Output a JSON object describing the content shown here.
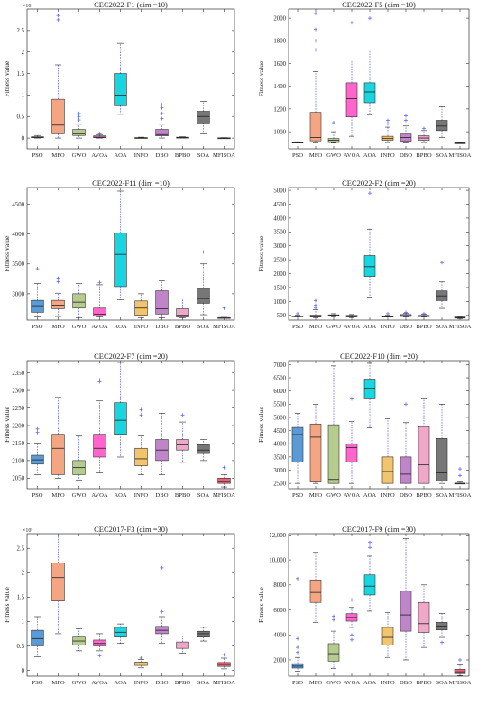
{
  "figure": {
    "categories": [
      "PSO",
      "MFO",
      "GWO",
      "AVOA",
      "AOA",
      "INFO",
      "DBO",
      "BPBO",
      "SOA",
      "MFISOA"
    ],
    "colors": [
      "#5b9bd5",
      "#f4a582",
      "#b5cc8e",
      "#ff66cc",
      "#19d5e0",
      "#f2c46e",
      "#c084c8",
      "#f0a8c8",
      "#777777",
      "#f06074"
    ]
  },
  "chart_data": [
    {
      "type": "box",
      "title": "CEC2022-F1 (dim =10)",
      "ylabel": "Fitness value",
      "exponent": "×10⁴",
      "ylim": [
        -0.25,
        3.0
      ],
      "yticks": [
        0,
        0.5,
        1,
        1.5,
        2,
        2.5
      ],
      "yticklabels": [
        "0",
        "0.5",
        "1",
        "1.5",
        "2",
        "2.5"
      ],
      "boxes": [
        {
          "q1": 0.01,
          "median": 0.02,
          "q3": 0.03,
          "wlow": 0.0,
          "whigh": 0.06,
          "outliers": []
        },
        {
          "q1": 0.1,
          "median": 0.3,
          "q3": 0.9,
          "wlow": 0.0,
          "whigh": 1.7,
          "outliers": [
            2.75,
            2.85
          ]
        },
        {
          "q1": 0.06,
          "median": 0.1,
          "q3": 0.2,
          "wlow": 0.0,
          "whigh": 0.32,
          "outliers": [
            0.42,
            0.5,
            0.57
          ]
        },
        {
          "q1": 0.01,
          "median": 0.02,
          "q3": 0.05,
          "wlow": 0.0,
          "whigh": 0.08,
          "outliers": [
            0.1
          ]
        },
        {
          "q1": 0.75,
          "median": 1.0,
          "q3": 1.5,
          "wlow": 0.55,
          "whigh": 2.2,
          "outliers": []
        },
        {
          "q1": 0.0,
          "median": 0.005,
          "q3": 0.01,
          "wlow": 0.0,
          "whigh": 0.02,
          "outliers": []
        },
        {
          "q1": 0.05,
          "median": 0.08,
          "q3": 0.2,
          "wlow": 0.0,
          "whigh": 0.32,
          "outliers": [
            0.45,
            0.57,
            0.7,
            0.77
          ]
        },
        {
          "q1": 0.0,
          "median": 0.01,
          "q3": 0.02,
          "wlow": 0.0,
          "whigh": 0.03,
          "outliers": []
        },
        {
          "q1": 0.35,
          "median": 0.5,
          "q3": 0.62,
          "wlow": 0.1,
          "whigh": 0.85,
          "outliers": []
        },
        {
          "q1": 0.0,
          "median": 0.0,
          "q3": 0.005,
          "wlow": 0.0,
          "whigh": 0.01,
          "outliers": []
        }
      ]
    },
    {
      "type": "box",
      "title": "CEC2022-F5 (dim =10)",
      "ylabel": "Fitness value",
      "ylim": [
        850,
        2080
      ],
      "yticks": [
        1000,
        1200,
        1400,
        1600,
        1800,
        2000
      ],
      "yticklabels": [
        "1000",
        "1200",
        "1400",
        "1600",
        "1800",
        "2000"
      ],
      "boxes": [
        {
          "q1": 900,
          "median": 903,
          "q3": 908,
          "wlow": 900,
          "whigh": 912,
          "outliers": []
        },
        {
          "q1": 920,
          "median": 950,
          "q3": 1170,
          "wlow": 900,
          "whigh": 1530,
          "outliers": [
            1720,
            1800,
            1900,
            2040
          ]
        },
        {
          "q1": 905,
          "median": 925,
          "q3": 940,
          "wlow": 900,
          "whigh": 1000,
          "outliers": [
            1080
          ]
        },
        {
          "q1": 1130,
          "median": 1290,
          "q3": 1430,
          "wlow": 960,
          "whigh": 1630,
          "outliers": [
            1960
          ]
        },
        {
          "q1": 1255,
          "median": 1350,
          "q3": 1430,
          "wlow": 1150,
          "whigh": 1720,
          "outliers": [
            2000
          ]
        },
        {
          "q1": 925,
          "median": 940,
          "q3": 960,
          "wlow": 905,
          "whigh": 1040,
          "outliers": [
            1070,
            1100
          ]
        },
        {
          "q1": 915,
          "median": 950,
          "q3": 980,
          "wlow": 900,
          "whigh": 1050,
          "outliers": [
            1100,
            1140
          ]
        },
        {
          "q1": 925,
          "median": 945,
          "q3": 965,
          "wlow": 905,
          "whigh": 1010,
          "outliers": [
            1030
          ]
        },
        {
          "q1": 1010,
          "median": 1050,
          "q3": 1100,
          "wlow": 950,
          "whigh": 1220,
          "outliers": []
        },
        {
          "q1": 900,
          "median": 900,
          "q3": 902,
          "wlow": 900,
          "whigh": 905,
          "outliers": []
        }
      ]
    },
    {
      "type": "box",
      "title": "CEC2022-F11 (dim =10)",
      "ylabel": "Fitness value",
      "ylim": [
        2560,
        4780
      ],
      "yticks": [
        3000,
        3500,
        4000,
        4500
      ],
      "yticklabels": [
        "3000",
        "3500",
        "4000",
        "4500"
      ],
      "boxes": [
        {
          "q1": 2690,
          "median": 2800,
          "q3": 2890,
          "wlow": 2610,
          "whigh": 3170,
          "outliers": [
            3420
          ]
        },
        {
          "q1": 2750,
          "median": 2810,
          "q3": 2890,
          "wlow": 2620,
          "whigh": 3010,
          "outliers": [
            3200,
            3260
          ]
        },
        {
          "q1": 2760,
          "median": 2860,
          "q3": 3000,
          "wlow": 2600,
          "whigh": 3170,
          "outliers": []
        },
        {
          "q1": 2630,
          "median": 2660,
          "q3": 2760,
          "wlow": 2610,
          "whigh": 3150,
          "outliers": [
            3190
          ]
        },
        {
          "q1": 3120,
          "median": 3660,
          "q3": 4020,
          "wlow": 2900,
          "whigh": 4720,
          "outliers": []
        },
        {
          "q1": 2640,
          "median": 2760,
          "q3": 2880,
          "wlow": 2600,
          "whigh": 3000,
          "outliers": []
        },
        {
          "q1": 2660,
          "median": 2750,
          "q3": 3050,
          "wlow": 2600,
          "whigh": 3220,
          "outliers": []
        },
        {
          "q1": 2610,
          "median": 2640,
          "q3": 2750,
          "wlow": 2600,
          "whigh": 2930,
          "outliers": []
        },
        {
          "q1": 2840,
          "median": 2920,
          "q3": 3090,
          "wlow": 2650,
          "whigh": 3500,
          "outliers": [
            3700
          ]
        },
        {
          "q1": 2600,
          "median": 2600,
          "q3": 2602,
          "wlow": 2600,
          "whigh": 2605,
          "outliers": [
            2760
          ]
        }
      ]
    },
    {
      "type": "box",
      "title": "CEC2022-F2 (dim =20)",
      "ylabel": "Fitness value",
      "ylim": [
        330,
        5100
      ],
      "yticks": [
        500,
        1000,
        1500,
        2000,
        2500,
        3000,
        3500,
        4000,
        4500,
        5000
      ],
      "yticklabels": [
        "500",
        "1000",
        "1500",
        "2000",
        "2500",
        "3000",
        "3500",
        "4000",
        "4500",
        "5000"
      ],
      "boxes": [
        {
          "q1": 449,
          "median": 460,
          "q3": 480,
          "wlow": 445,
          "whigh": 510,
          "outliers": [
            560
          ]
        },
        {
          "q1": 440,
          "median": 460,
          "q3": 510,
          "wlow": 420,
          "whigh": 700,
          "outliers": [
            760,
            860,
            1030
          ]
        },
        {
          "q1": 470,
          "median": 500,
          "q3": 520,
          "wlow": 445,
          "whigh": 560,
          "outliers": []
        },
        {
          "q1": 440,
          "median": 460,
          "q3": 500,
          "wlow": 420,
          "whigh": 530,
          "outliers": []
        },
        {
          "q1": 1900,
          "median": 2250,
          "q3": 2650,
          "wlow": 1150,
          "whigh": 3600,
          "outliers": [
            4900
          ]
        },
        {
          "q1": 449,
          "median": 455,
          "q3": 470,
          "wlow": 440,
          "whigh": 500,
          "outliers": [
            560
          ]
        },
        {
          "q1": 460,
          "median": 490,
          "q3": 530,
          "wlow": 440,
          "whigh": 580,
          "outliers": [
            610
          ]
        },
        {
          "q1": 455,
          "median": 475,
          "q3": 500,
          "wlow": 440,
          "whigh": 540,
          "outliers": [
            560
          ]
        },
        {
          "q1": 1030,
          "median": 1200,
          "q3": 1380,
          "wlow": 750,
          "whigh": 1700,
          "outliers": [
            2400
          ]
        },
        {
          "q1": 400,
          "median": 420,
          "q3": 440,
          "wlow": 380,
          "whigh": 460,
          "outliers": []
        }
      ]
    },
    {
      "type": "box",
      "title": "CEC2022-F7 (dim =20)",
      "ylabel": "Fitness value",
      "ylim": [
        2020,
        2385
      ],
      "yticks": [
        2050,
        2100,
        2150,
        2200,
        2250,
        2300,
        2350
      ],
      "yticklabels": [
        "2050",
        "2100",
        "2150",
        "2200",
        "2250",
        "2300",
        "2350"
      ],
      "boxes": [
        {
          "q1": 2090,
          "median": 2102,
          "q3": 2115,
          "wlow": 2060,
          "whigh": 2150,
          "outliers": [
            2180,
            2190
          ]
        },
        {
          "q1": 2060,
          "median": 2135,
          "q3": 2175,
          "wlow": 2050,
          "whigh": 2280,
          "outliers": []
        },
        {
          "q1": 2060,
          "median": 2080,
          "q3": 2100,
          "wlow": 2045,
          "whigh": 2170,
          "outliers": []
        },
        {
          "q1": 2110,
          "median": 2135,
          "q3": 2175,
          "wlow": 2065,
          "whigh": 2270,
          "outliers": [
            2325,
            2330
          ]
        },
        {
          "q1": 2175,
          "median": 2215,
          "q3": 2265,
          "wlow": 2110,
          "whigh": 2380,
          "outliers": []
        },
        {
          "q1": 2085,
          "median": 2105,
          "q3": 2135,
          "wlow": 2060,
          "whigh": 2170,
          "outliers": [
            2230,
            2245
          ]
        },
        {
          "q1": 2100,
          "median": 2130,
          "q3": 2160,
          "wlow": 2060,
          "whigh": 2235,
          "outliers": []
        },
        {
          "q1": 2130,
          "median": 2145,
          "q3": 2160,
          "wlow": 2095,
          "whigh": 2210,
          "outliers": [
            2230
          ]
        },
        {
          "q1": 2120,
          "median": 2130,
          "q3": 2145,
          "wlow": 2100,
          "whigh": 2160,
          "outliers": []
        },
        {
          "q1": 2035,
          "median": 2040,
          "q3": 2050,
          "wlow": 2025,
          "whigh": 2060,
          "outliers": [
            2080
          ]
        }
      ]
    },
    {
      "type": "box",
      "title": "CEC2022-F10 (dim =20)",
      "ylabel": "Fitness value",
      "ylim": [
        2300,
        7150
      ],
      "yticks": [
        2500,
        3000,
        3500,
        4000,
        4500,
        5000,
        5500,
        6000,
        6500,
        7000
      ],
      "yticklabels": [
        "2500",
        "3000",
        "3500",
        "4000",
        "4500",
        "5000",
        "5500",
        "6000",
        "6500",
        "7000"
      ],
      "boxes": [
        {
          "q1": 3300,
          "median": 4350,
          "q3": 4620,
          "wlow": 2500,
          "whigh": 5150,
          "outliers": []
        },
        {
          "q1": 2550,
          "median": 4250,
          "q3": 4750,
          "wlow": 2500,
          "whigh": 5500,
          "outliers": []
        },
        {
          "q1": 2500,
          "median": 2650,
          "q3": 4720,
          "wlow": 2500,
          "whigh": 6950,
          "outliers": []
        },
        {
          "q1": 3300,
          "median": 3850,
          "q3": 4000,
          "wlow": 2500,
          "whigh": 4850,
          "outliers": [
            5700
          ]
        },
        {
          "q1": 5700,
          "median": 6100,
          "q3": 6450,
          "wlow": 4600,
          "whigh": 7050,
          "outliers": []
        },
        {
          "q1": 2500,
          "median": 2950,
          "q3": 3500,
          "wlow": 2500,
          "whigh": 4950,
          "outliers": []
        },
        {
          "q1": 2500,
          "median": 2850,
          "q3": 3500,
          "wlow": 2500,
          "whigh": 4800,
          "outliers": [
            5500
          ]
        },
        {
          "q1": 2500,
          "median": 3200,
          "q3": 4650,
          "wlow": 2500,
          "whigh": 5700,
          "outliers": []
        },
        {
          "q1": 2600,
          "median": 2900,
          "q3": 4200,
          "wlow": 2500,
          "whigh": 5500,
          "outliers": []
        },
        {
          "q1": 2500,
          "median": 2500,
          "q3": 2510,
          "wlow": 2500,
          "whigh": 2550,
          "outliers": [
            2800,
            3050
          ]
        }
      ]
    },
    {
      "type": "box",
      "title": "CEC2017-F3 (dim =30)",
      "ylabel": "Fitness value",
      "exponent": "×10⁵",
      "ylim": [
        -0.12,
        2.8
      ],
      "yticks": [
        0,
        0.5,
        1,
        1.5,
        2,
        2.5
      ],
      "yticklabels": [
        "0",
        "0.5",
        "1",
        "1.5",
        "2",
        "2.5"
      ],
      "boxes": [
        {
          "q1": 0.5,
          "median": 0.65,
          "q3": 0.82,
          "wlow": 0.28,
          "whigh": 1.1,
          "outliers": []
        },
        {
          "q1": 1.42,
          "median": 1.9,
          "q3": 2.2,
          "wlow": 0.75,
          "whigh": 2.75,
          "outliers": []
        },
        {
          "q1": 0.52,
          "median": 0.6,
          "q3": 0.68,
          "wlow": 0.4,
          "whigh": 0.85,
          "outliers": []
        },
        {
          "q1": 0.5,
          "median": 0.55,
          "q3": 0.62,
          "wlow": 0.4,
          "whigh": 0.75,
          "outliers": [
            0.3
          ]
        },
        {
          "q1": 0.68,
          "median": 0.78,
          "q3": 0.88,
          "wlow": 0.55,
          "whigh": 0.95,
          "outliers": []
        },
        {
          "q1": 0.1,
          "median": 0.13,
          "q3": 0.17,
          "wlow": 0.05,
          "whigh": 0.22,
          "outliers": [
            0.25
          ]
        },
        {
          "q1": 0.75,
          "median": 0.82,
          "q3": 0.9,
          "wlow": 0.55,
          "whigh": 1.1,
          "outliers": [
            1.2,
            2.1
          ]
        },
        {
          "q1": 0.45,
          "median": 0.52,
          "q3": 0.58,
          "wlow": 0.35,
          "whigh": 0.7,
          "outliers": []
        },
        {
          "q1": 0.68,
          "median": 0.75,
          "q3": 0.8,
          "wlow": 0.6,
          "whigh": 0.88,
          "outliers": []
        },
        {
          "q1": 0.08,
          "median": 0.12,
          "q3": 0.16,
          "wlow": 0.03,
          "whigh": 0.25,
          "outliers": [
            0.32
          ]
        }
      ]
    },
    {
      "type": "box",
      "title": "CEC2017-F9 (dim =30)",
      "ylabel": "Fitness value",
      "ylim": [
        700,
        12100
      ],
      "yticks": [
        2000,
        4000,
        6000,
        8000,
        10000,
        12000
      ],
      "yticklabels": [
        "2000",
        "4000",
        "6000",
        "8000",
        "10,000",
        "12,000"
      ],
      "boxes": [
        {
          "q1": 1350,
          "median": 1500,
          "q3": 1700,
          "wlow": 1100,
          "whigh": 2200,
          "outliers": [
            2600,
            3000,
            3700,
            8500
          ]
        },
        {
          "q1": 6600,
          "median": 7400,
          "q3": 8400,
          "wlow": 5000,
          "whigh": 10600,
          "outliers": []
        },
        {
          "q1": 1900,
          "median": 2500,
          "q3": 3300,
          "wlow": 1300,
          "whigh": 4300,
          "outliers": [
            5200,
            5500
          ]
        },
        {
          "q1": 5100,
          "median": 5400,
          "q3": 5700,
          "wlow": 4600,
          "whigh": 6200,
          "outliers": [
            4000,
            3600,
            6800
          ]
        },
        {
          "q1": 7200,
          "median": 7900,
          "q3": 8800,
          "wlow": 5900,
          "whigh": 10300,
          "outliers": [
            11000,
            11400
          ]
        },
        {
          "q1": 3200,
          "median": 3800,
          "q3": 4600,
          "wlow": 2200,
          "whigh": 5800,
          "outliers": []
        },
        {
          "q1": 4300,
          "median": 5600,
          "q3": 7500,
          "wlow": 2000,
          "whigh": 11700,
          "outliers": []
        },
        {
          "q1": 4200,
          "median": 4900,
          "q3": 6600,
          "wlow": 3000,
          "whigh": 8000,
          "outliers": []
        },
        {
          "q1": 4400,
          "median": 4700,
          "q3": 5000,
          "wlow": 3800,
          "whigh": 5700,
          "outliers": [
            3400
          ]
        },
        {
          "q1": 900,
          "median": 1050,
          "q3": 1250,
          "wlow": 750,
          "whigh": 1600,
          "outliers": [
            2000
          ]
        }
      ]
    }
  ]
}
